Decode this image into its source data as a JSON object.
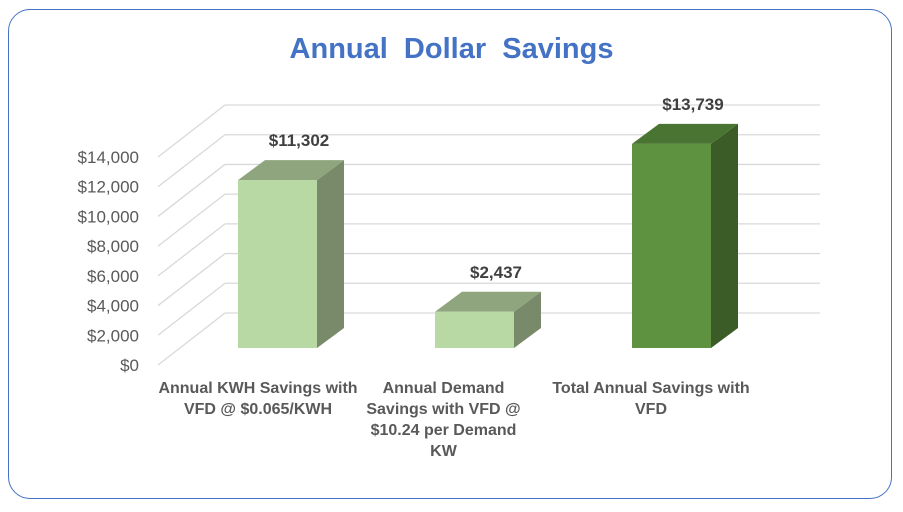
{
  "chart_data": {
    "type": "bar",
    "title": "Annual  Dollar  Savings",
    "categories": [
      "Annual KWH Savings with VFD @ $0.065/KWH",
      "Annual Demand Savings with VFD @ $10.24 per Demand KW",
      "Total Annual Savings with VFD"
    ],
    "values": [
      11302,
      2437,
      13739
    ],
    "data_labels": [
      "$11,302",
      "$2,437",
      "$13,739"
    ],
    "yticks": [
      "$0",
      "$2,000",
      "$4,000",
      "$6,000",
      "$8,000",
      "$10,000",
      "$12,000",
      "$14,000"
    ],
    "ylim": [
      0,
      14000
    ],
    "xlabel": "",
    "ylabel": "",
    "grid": true,
    "style": "3d-column",
    "colors": {
      "light_front": "#b8d9a3",
      "light_side": "#788a69",
      "light_top": "#8ea57e",
      "dark_front": "#5e9140",
      "dark_side": "#3b5c27",
      "dark_top": "#4a7431",
      "title": "#4472c4",
      "text": "#595959",
      "grid": "#d9d9d9"
    }
  }
}
